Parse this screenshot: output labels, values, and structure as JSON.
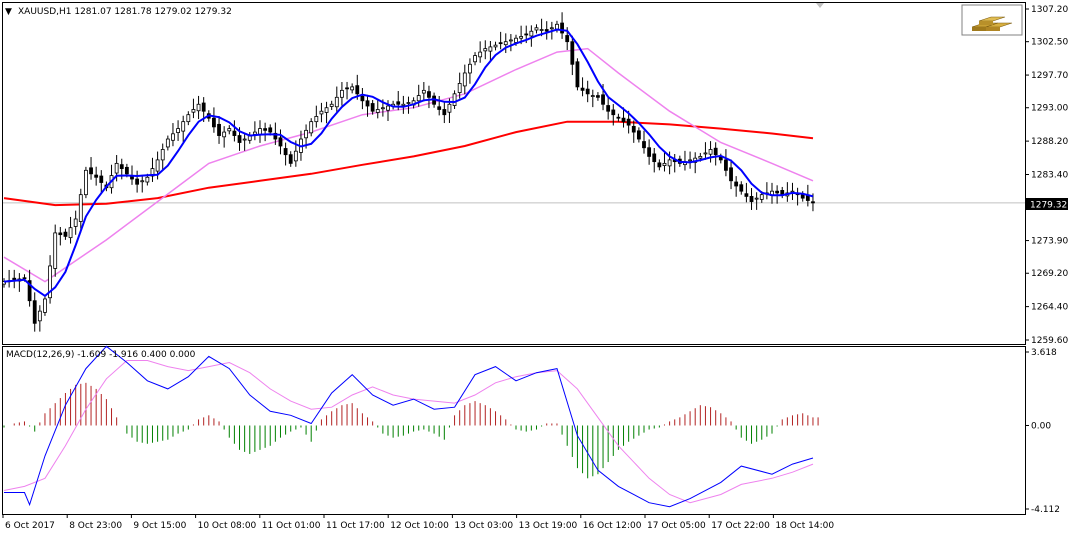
{
  "header": {
    "dropdown_glyph": "▼",
    "symbol_info": "XAUUSD,H1  1281.07 1281.78 1279.02 1279.32",
    "badge_icon": "gold-bars-icon"
  },
  "macd_header": {
    "label": "MACD(12,26,9) -1.609 -1.916 0.400 0.000"
  },
  "price_badge": "1279.32",
  "colors": {
    "background": "#ffffff",
    "candle": "#000000",
    "ma_fast": "#0000ff",
    "ma_mid": "#ee82ee",
    "ma_slow": "#ff0000",
    "macd_line": "#0000ff",
    "signal_line": "#ee82ee",
    "hist_pos": "#b22222",
    "hist_neg": "#008000",
    "grid_line": "#c0c0c0",
    "badge_bg": "#000000",
    "badge_fg": "#ffffff"
  },
  "chart_data": [
    {
      "type": "candlestick",
      "symbol": "XAUUSD",
      "timeframe": "H1",
      "ylim": [
        1259.6,
        1307.2
      ],
      "y_ticks": [
        "1307.20",
        "1302.50",
        "1297.70",
        "1293.00",
        "1288.20",
        "1283.40",
        "1279.32",
        "1273.90",
        "1269.20",
        "1264.40",
        "1259.60"
      ],
      "x_ticks": [
        "6 Oct 2017",
        "8 Oct 23:00",
        "9 Oct 15:00",
        "10 Oct 08:00",
        "11 Oct 01:00",
        "11 Oct 17:00",
        "12 Oct 10:00",
        "13 Oct 03:00",
        "13 Oct 19:00",
        "16 Oct 12:00",
        "17 Oct 05:00",
        "17 Oct 22:00",
        "18 Oct 14:00"
      ],
      "current_price": 1279.32,
      "close_path": [
        [
          0,
          1268.0
        ],
        [
          4,
          1268.5
        ],
        [
          6,
          1262.0
        ],
        [
          8,
          1265.5
        ],
        [
          10,
          1275.0
        ],
        [
          12,
          1274.5
        ],
        [
          14,
          1277.0
        ],
        [
          16,
          1284.0
        ],
        [
          18,
          1283.0
        ],
        [
          20,
          1281.5
        ],
        [
          22,
          1285.0
        ],
        [
          24,
          1283.5
        ],
        [
          26,
          1282.0
        ],
        [
          28,
          1283.0
        ],
        [
          30,
          1285.5
        ],
        [
          32,
          1288.5
        ],
        [
          34,
          1290.0
        ],
        [
          36,
          1292.0
        ],
        [
          38,
          1293.5
        ],
        [
          40,
          1291.5
        ],
        [
          42,
          1289.0
        ],
        [
          44,
          1290.0
        ],
        [
          46,
          1288.0
        ],
        [
          48,
          1289.0
        ],
        [
          50,
          1290.0
        ],
        [
          52,
          1289.5
        ],
        [
          54,
          1287.5
        ],
        [
          56,
          1285.0
        ],
        [
          58,
          1288.5
        ],
        [
          60,
          1291.0
        ],
        [
          62,
          1292.5
        ],
        [
          64,
          1293.5
        ],
        [
          66,
          1295.5
        ],
        [
          68,
          1296.0
        ],
        [
          70,
          1294.0
        ],
        [
          72,
          1292.5
        ],
        [
          74,
          1293.0
        ],
        [
          76,
          1293.5
        ],
        [
          78,
          1293.5
        ],
        [
          80,
          1294.0
        ],
        [
          82,
          1295.5
        ],
        [
          84,
          1293.5
        ],
        [
          86,
          1292.0
        ],
        [
          88,
          1295.0
        ],
        [
          90,
          1298.0
        ],
        [
          92,
          1300.5
        ],
        [
          94,
          1301.5
        ],
        [
          96,
          1302.0
        ],
        [
          98,
          1302.5
        ],
        [
          100,
          1303.0
        ],
        [
          102,
          1303.5
        ],
        [
          104,
          1304.5
        ],
        [
          106,
          1304.0
        ],
        [
          108,
          1305.0
        ],
        [
          110,
          1302.5
        ],
        [
          112,
          1296.0
        ],
        [
          114,
          1295.0
        ],
        [
          116,
          1294.5
        ],
        [
          118,
          1292.5
        ],
        [
          120,
          1291.5
        ],
        [
          122,
          1290.5
        ],
        [
          124,
          1288.5
        ],
        [
          126,
          1286.0
        ],
        [
          128,
          1284.5
        ],
        [
          130,
          1285.5
        ],
        [
          132,
          1285.0
        ],
        [
          134,
          1285.5
        ],
        [
          136,
          1286.0
        ],
        [
          138,
          1287.0
        ],
        [
          140,
          1285.5
        ],
        [
          142,
          1282.5
        ],
        [
          144,
          1281.0
        ],
        [
          146,
          1279.5
        ],
        [
          148,
          1280.5
        ],
        [
          150,
          1281.0
        ],
        [
          152,
          1280.5
        ],
        [
          154,
          1281.0
        ],
        [
          156,
          1280.0
        ],
        [
          158,
          1279.32
        ]
      ],
      "ma_slow": [
        [
          0,
          1280.0
        ],
        [
          10,
          1279.0
        ],
        [
          20,
          1279.2
        ],
        [
          30,
          1280.0
        ],
        [
          40,
          1281.5
        ],
        [
          50,
          1282.5
        ],
        [
          60,
          1283.5
        ],
        [
          70,
          1284.8
        ],
        [
          80,
          1286.0
        ],
        [
          90,
          1287.5
        ],
        [
          100,
          1289.5
        ],
        [
          110,
          1291.0
        ],
        [
          120,
          1291.0
        ],
        [
          130,
          1290.6
        ],
        [
          140,
          1290.0
        ],
        [
          150,
          1289.3
        ],
        [
          158,
          1288.6
        ]
      ],
      "ma_mid": [
        [
          0,
          1271.5
        ],
        [
          8,
          1268.0
        ],
        [
          12,
          1270.0
        ],
        [
          20,
          1274.0
        ],
        [
          30,
          1279.5
        ],
        [
          40,
          1285.0
        ],
        [
          46,
          1286.5
        ],
        [
          50,
          1287.5
        ],
        [
          60,
          1289.5
        ],
        [
          70,
          1292.0
        ],
        [
          80,
          1293.0
        ],
        [
          90,
          1295.0
        ],
        [
          100,
          1298.5
        ],
        [
          108,
          1301.0
        ],
        [
          114,
          1301.5
        ],
        [
          120,
          1298.0
        ],
        [
          130,
          1292.5
        ],
        [
          140,
          1288.0
        ],
        [
          150,
          1285.0
        ],
        [
          158,
          1282.5
        ]
      ]
    },
    {
      "type": "macd",
      "params": [
        12,
        26,
        9
      ],
      "ylim": [
        -4.112,
        3.618
      ],
      "y_ticks": [
        "3.618",
        "0.00",
        "-4.112"
      ],
      "values": {
        "macd": -1.609,
        "signal": -1.916,
        "histogram": 0.4,
        "zero": 0.0
      },
      "macd_line": [
        [
          0,
          -3.3
        ],
        [
          4,
          -3.3
        ],
        [
          5,
          -3.9
        ],
        [
          8,
          -1.5
        ],
        [
          12,
          1.0
        ],
        [
          16,
          2.8
        ],
        [
          20,
          3.9
        ],
        [
          24,
          3.1
        ],
        [
          28,
          2.2
        ],
        [
          32,
          1.8
        ],
        [
          36,
          2.4
        ],
        [
          40,
          3.4
        ],
        [
          44,
          2.8
        ],
        [
          48,
          1.5
        ],
        [
          52,
          0.7
        ],
        [
          56,
          0.5
        ],
        [
          60,
          0.1
        ],
        [
          64,
          1.6
        ],
        [
          68,
          2.5
        ],
        [
          72,
          1.5
        ],
        [
          76,
          1.0
        ],
        [
          80,
          1.3
        ],
        [
          84,
          0.8
        ],
        [
          88,
          0.9
        ],
        [
          92,
          2.5
        ],
        [
          96,
          2.9
        ],
        [
          100,
          2.2
        ],
        [
          104,
          2.6
        ],
        [
          108,
          2.8
        ],
        [
          112,
          -0.5
        ],
        [
          116,
          -2.2
        ],
        [
          120,
          -3.0
        ],
        [
          126,
          -3.8
        ],
        [
          130,
          -4.0
        ],
        [
          134,
          -3.6
        ],
        [
          140,
          -2.8
        ],
        [
          144,
          -2.0
        ],
        [
          150,
          -2.4
        ],
        [
          154,
          -1.9
        ],
        [
          158,
          -1.6
        ]
      ],
      "signal_line": [
        [
          0,
          -3.2
        ],
        [
          4,
          -3.0
        ],
        [
          8,
          -2.6
        ],
        [
          12,
          -1.0
        ],
        [
          16,
          0.8
        ],
        [
          20,
          2.3
        ],
        [
          24,
          3.2
        ],
        [
          28,
          3.2
        ],
        [
          32,
          2.9
        ],
        [
          36,
          2.7
        ],
        [
          40,
          2.9
        ],
        [
          44,
          3.1
        ],
        [
          48,
          2.6
        ],
        [
          52,
          1.8
        ],
        [
          56,
          1.2
        ],
        [
          60,
          0.8
        ],
        [
          64,
          0.9
        ],
        [
          68,
          1.5
        ],
        [
          72,
          1.9
        ],
        [
          76,
          1.5
        ],
        [
          80,
          1.3
        ],
        [
          84,
          1.2
        ],
        [
          88,
          1.1
        ],
        [
          92,
          1.5
        ],
        [
          96,
          2.1
        ],
        [
          100,
          2.4
        ],
        [
          104,
          2.6
        ],
        [
          108,
          2.7
        ],
        [
          112,
          1.8
        ],
        [
          116,
          0.4
        ],
        [
          120,
          -1.0
        ],
        [
          126,
          -2.6
        ],
        [
          130,
          -3.4
        ],
        [
          134,
          -3.8
        ],
        [
          140,
          -3.4
        ],
        [
          144,
          -2.9
        ],
        [
          150,
          -2.6
        ],
        [
          154,
          -2.3
        ],
        [
          158,
          -1.9
        ]
      ],
      "histogram": [
        [
          0,
          -0.1
        ],
        [
          2,
          0.1
        ],
        [
          4,
          0.2
        ],
        [
          6,
          -0.3
        ],
        [
          8,
          0.6
        ],
        [
          10,
          1.1
        ],
        [
          12,
          1.6
        ],
        [
          14,
          2.0
        ],
        [
          16,
          2.1
        ],
        [
          18,
          1.8
        ],
        [
          20,
          1.3
        ],
        [
          22,
          0.4
        ],
        [
          24,
          -0.4
        ],
        [
          26,
          -0.8
        ],
        [
          28,
          -0.9
        ],
        [
          30,
          -0.8
        ],
        [
          32,
          -0.7
        ],
        [
          34,
          -0.4
        ],
        [
          36,
          -0.2
        ],
        [
          38,
          0.3
        ],
        [
          40,
          0.5
        ],
        [
          42,
          0.2
        ],
        [
          44,
          -0.6
        ],
        [
          46,
          -1.2
        ],
        [
          48,
          -1.4
        ],
        [
          50,
          -1.2
        ],
        [
          52,
          -1.0
        ],
        [
          54,
          -0.6
        ],
        [
          56,
          -0.3
        ],
        [
          58,
          -0.1
        ],
        [
          60,
          -0.8
        ],
        [
          62,
          0.3
        ],
        [
          64,
          0.7
        ],
        [
          66,
          1.0
        ],
        [
          68,
          1.1
        ],
        [
          70,
          0.6
        ],
        [
          72,
          0.2
        ],
        [
          74,
          -0.4
        ],
        [
          76,
          -0.6
        ],
        [
          78,
          -0.5
        ],
        [
          80,
          -0.3
        ],
        [
          82,
          -0.2
        ],
        [
          84,
          -0.4
        ],
        [
          86,
          -0.7
        ],
        [
          88,
          0.5
        ],
        [
          90,
          1.0
        ],
        [
          92,
          1.2
        ],
        [
          94,
          1.0
        ],
        [
          96,
          0.7
        ],
        [
          98,
          0.3
        ],
        [
          100,
          -0.2
        ],
        [
          102,
          -0.3
        ],
        [
          104,
          -0.2
        ],
        [
          106,
          0.1
        ],
        [
          108,
          0.1
        ],
        [
          110,
          -1.0
        ],
        [
          112,
          -2.1
        ],
        [
          114,
          -2.6
        ],
        [
          116,
          -2.4
        ],
        [
          118,
          -1.8
        ],
        [
          120,
          -1.2
        ],
        [
          122,
          -0.8
        ],
        [
          124,
          -0.5
        ],
        [
          126,
          -0.2
        ],
        [
          128,
          -0.1
        ],
        [
          130,
          0.2
        ],
        [
          132,
          0.4
        ],
        [
          134,
          0.7
        ],
        [
          136,
          1.0
        ],
        [
          138,
          0.9
        ],
        [
          140,
          0.6
        ],
        [
          142,
          0.2
        ],
        [
          144,
          -0.6
        ],
        [
          146,
          -0.9
        ],
        [
          148,
          -0.7
        ],
        [
          150,
          -0.4
        ],
        [
          152,
          0.3
        ],
        [
          154,
          0.5
        ],
        [
          156,
          0.6
        ],
        [
          158,
          0.4
        ]
      ]
    }
  ]
}
